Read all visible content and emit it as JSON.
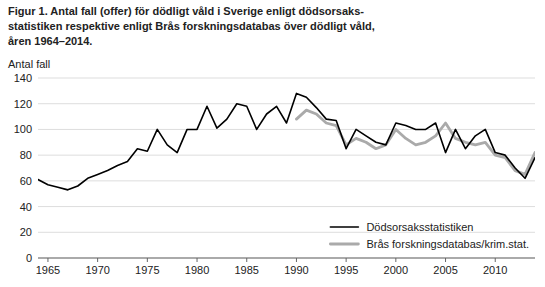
{
  "chart_data": {
    "type": "line",
    "title": "Figur 1.    Antal fall (offer) för dödligt våld i Sverige enligt dödsorsaks-\nstatistiken respektive enligt Brås forskningsdatabas över dödligt våld,\nåren 1964–2014.",
    "ylabel": "Antal fall",
    "x": [
      1964,
      1965,
      1966,
      1967,
      1968,
      1969,
      1970,
      1971,
      1972,
      1973,
      1974,
      1975,
      1976,
      1977,
      1978,
      1979,
      1980,
      1981,
      1982,
      1983,
      1984,
      1985,
      1986,
      1987,
      1988,
      1989,
      1990,
      1991,
      1992,
      1993,
      1994,
      1995,
      1996,
      1997,
      1998,
      1999,
      2000,
      2001,
      2002,
      2003,
      2004,
      2005,
      2006,
      2007,
      2008,
      2009,
      2010,
      2011,
      2012,
      2013,
      2014
    ],
    "series": [
      {
        "name": "Dödsorsaksstatistiken",
        "color": "#000000",
        "values": [
          61,
          57,
          55,
          53,
          56,
          62,
          65,
          68,
          72,
          75,
          85,
          83,
          100,
          88,
          82,
          100,
          100,
          118,
          101,
          108,
          120,
          118,
          100,
          112,
          118,
          105,
          128,
          125,
          117,
          108,
          107,
          85,
          100,
          95,
          90,
          88,
          105,
          103,
          100,
          100,
          105,
          82,
          100,
          85,
          95,
          100,
          82,
          80,
          70,
          62,
          78
        ]
      },
      {
        "name": "Brås forskningsdatabas/krim.stat.",
        "color": "#aaaaaa",
        "values": [
          null,
          null,
          null,
          null,
          null,
          null,
          null,
          null,
          null,
          null,
          null,
          null,
          null,
          null,
          null,
          null,
          null,
          null,
          null,
          null,
          null,
          null,
          null,
          null,
          null,
          null,
          108,
          115,
          112,
          105,
          103,
          88,
          93,
          90,
          85,
          88,
          100,
          93,
          88,
          90,
          95,
          105,
          93,
          90,
          88,
          90,
          80,
          78,
          68,
          65,
          82
        ]
      }
    ],
    "xlim": [
      1964,
      2014
    ],
    "xticks": [
      1965,
      1970,
      1975,
      1980,
      1985,
      1990,
      1995,
      2000,
      2005,
      2010
    ],
    "ylim": [
      0,
      140
    ],
    "yticks": [
      0,
      20,
      40,
      60,
      80,
      100,
      120,
      140
    ],
    "grid": true,
    "legend": "lower right"
  }
}
